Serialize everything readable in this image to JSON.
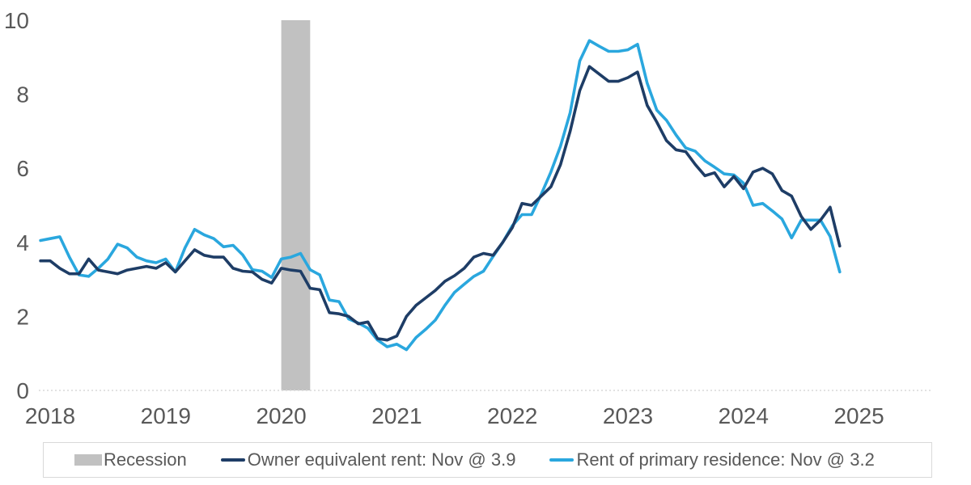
{
  "chart_data": {
    "type": "line",
    "title": "",
    "x_start": "2017-12",
    "x_end": "2024-11",
    "x_frequency": "monthly",
    "x_tick_labels": [
      "2018",
      "2019",
      "2020",
      "2021",
      "2022",
      "2023",
      "2024",
      "2025"
    ],
    "y_ticks": [
      0,
      2,
      4,
      6,
      8,
      10
    ],
    "ylim": [
      0,
      10
    ],
    "grid": "dotted baseline at zero only",
    "legend_position": "bottom",
    "recession_band": {
      "label": "Recession",
      "from": "2020-01",
      "to": "2020-04",
      "color": "#c1c1c1"
    },
    "series": [
      {
        "name": "Owner equivalent rent: Nov @ 3.9",
        "color": "#1e3d66",
        "last_value": 3.9,
        "values": [
          3.5,
          3.5,
          3.3,
          3.15,
          3.15,
          3.55,
          3.25,
          3.2,
          3.15,
          3.25,
          3.3,
          3.35,
          3.3,
          3.45,
          3.2,
          3.5,
          3.8,
          3.65,
          3.6,
          3.6,
          3.3,
          3.22,
          3.2,
          3.0,
          2.9,
          3.3,
          3.25,
          3.22,
          2.76,
          2.72,
          2.1,
          2.07,
          2.0,
          1.8,
          1.85,
          1.4,
          1.36,
          1.47,
          2.0,
          2.3,
          2.5,
          2.7,
          2.95,
          3.1,
          3.3,
          3.6,
          3.7,
          3.65,
          4.0,
          4.4,
          5.05,
          5.0,
          5.25,
          5.5,
          6.1,
          7.0,
          8.1,
          8.75,
          8.55,
          8.35,
          8.35,
          8.45,
          8.6,
          7.7,
          7.25,
          6.75,
          6.5,
          6.45,
          6.1,
          5.8,
          5.88,
          5.5,
          5.78,
          5.45,
          5.9,
          6.0,
          5.85,
          5.4,
          5.25,
          4.7,
          4.35,
          4.6,
          4.95,
          3.9
        ]
      },
      {
        "name": "Rent of primary residence: Nov @ 3.2",
        "color": "#2aa7de",
        "last_value": 3.2,
        "values": [
          4.05,
          4.1,
          4.15,
          3.6,
          3.12,
          3.08,
          3.3,
          3.55,
          3.95,
          3.85,
          3.6,
          3.5,
          3.45,
          3.55,
          3.2,
          3.85,
          4.35,
          4.2,
          4.1,
          3.88,
          3.92,
          3.66,
          3.26,
          3.22,
          3.05,
          3.55,
          3.6,
          3.7,
          3.26,
          3.12,
          2.44,
          2.4,
          1.93,
          1.82,
          1.68,
          1.36,
          1.18,
          1.25,
          1.1,
          1.43,
          1.65,
          1.9,
          2.3,
          2.65,
          2.87,
          3.08,
          3.22,
          3.62,
          4.0,
          4.45,
          4.75,
          4.75,
          5.3,
          5.9,
          6.6,
          7.5,
          8.9,
          9.45,
          9.3,
          9.16,
          9.16,
          9.2,
          9.35,
          8.3,
          7.57,
          7.3,
          6.9,
          6.55,
          6.46,
          6.2,
          6.03,
          5.85,
          5.82,
          5.6,
          5.0,
          5.05,
          4.85,
          4.63,
          4.12,
          4.6,
          4.6,
          4.6,
          4.16,
          3.2
        ]
      }
    ]
  },
  "axes": {
    "y_labels": [
      "10",
      "8",
      "6",
      "4",
      "2",
      "0"
    ],
    "x_labels": [
      "2018",
      "2019",
      "2020",
      "2021",
      "2022",
      "2023",
      "2024",
      "2025"
    ],
    "text_color": "#595959",
    "baseline_color": "#d9d9d9"
  },
  "legend": {
    "items": [
      {
        "label": "Recession",
        "swatch": "rect",
        "color": "#c1c1c1"
      },
      {
        "label": "Owner equivalent rent: Nov @ 3.9",
        "swatch": "line",
        "color": "#1e3d66"
      },
      {
        "label": "Rent of primary residence: Nov @ 3.2",
        "swatch": "line",
        "color": "#2aa7de"
      }
    ]
  }
}
